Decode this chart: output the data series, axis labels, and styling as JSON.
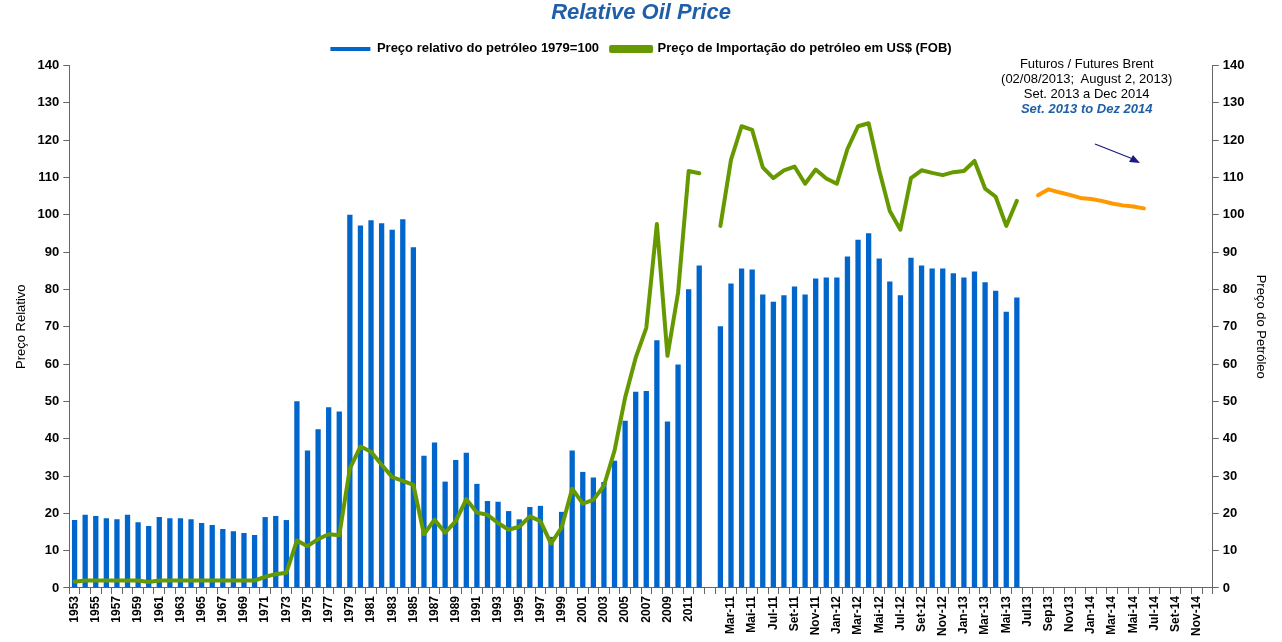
{
  "chart_data": {
    "type": "bar",
    "title": "Relative Oil Price",
    "categories": [
      "1953",
      null,
      "1955",
      null,
      "1957",
      null,
      "1959",
      null,
      "1961",
      null,
      "1963",
      null,
      "1965",
      null,
      "1967",
      null,
      "1969",
      null,
      "1971",
      null,
      "1973",
      null,
      "1975",
      null,
      "1977",
      null,
      "1979",
      null,
      "1981",
      null,
      "1983",
      null,
      "1985",
      null,
      "1987",
      null,
      "1989",
      null,
      "1991",
      null,
      "1993",
      null,
      "1995",
      null,
      "1997",
      null,
      "1999",
      null,
      "2001",
      null,
      "2003",
      null,
      "2005",
      null,
      "2007",
      null,
      "2009",
      null,
      "2011",
      null,
      null,
      null,
      "Mar-11",
      null,
      "Mai-11",
      null,
      "Jul-11",
      null,
      "Set-11",
      null,
      "Nov-11",
      null,
      "Jan-12",
      null,
      "Mar-12",
      null,
      "Mai-12",
      null,
      "Jul-12",
      null,
      "Set-12",
      null,
      "Nov-12",
      null,
      "Jan-13",
      null,
      "Mar-13",
      null,
      "Mai-13",
      null,
      "Jul13",
      null,
      "Sep13",
      null,
      "Nov13",
      null,
      "Jan-14",
      null,
      "Mar-14",
      null,
      "Mai-14",
      null,
      "Jul-14",
      null,
      "Set-14",
      null,
      "Nov-14",
      null
    ],
    "series": [
      {
        "name": "Preço relativo do petróleo 1979=100",
        "color": "#0066cc",
        "values": [
          18.2,
          19.6,
          19.3,
          18.7,
          18.4,
          19.6,
          17.6,
          16.6,
          19.0,
          18.7,
          18.7,
          18.4,
          17.4,
          16.9,
          15.8,
          15.2,
          14.7,
          14.2,
          19.0,
          19.3,
          18.2,
          50.0,
          36.8,
          42.5,
          48.4,
          47.3,
          100,
          97.1,
          98.5,
          97.7,
          96.0,
          98.8,
          91.3,
          35.4,
          39.0,
          28.5,
          34.3,
          36.2,
          27.9,
          23.3,
          23.1,
          20.6,
          18.4,
          21.7,
          22.0,
          13.7,
          20.4,
          36.8,
          31.1,
          29.6,
          28.4,
          34.1,
          44.8,
          52.6,
          52.8,
          66.4,
          44.6,
          59.9,
          80.0,
          86.4,
          null,
          70.1,
          81.6,
          85.6,
          85.3,
          78.6,
          76.7,
          78.4,
          80.8,
          78.6,
          82.9,
          83.2,
          83.2,
          88.8,
          93.3,
          95.0,
          88.3,
          82.1,
          78.4,
          88.5,
          86.4,
          85.6,
          85.6,
          84.3,
          83.2,
          84.8,
          81.9,
          79.6,
          74.0,
          77.8,
          null,
          null,
          null,
          null,
          null,
          null,
          null,
          null,
          null,
          null,
          null,
          null,
          null,
          null,
          null,
          null,
          null,
          null
        ]
      },
      {
        "name": "Preço de Importação do petróleo em US$ (FOB)",
        "type": "line",
        "axis": "y2",
        "color": "#669900",
        "values": [
          1.7,
          2.0,
          2.0,
          2.0,
          2.0,
          2.0,
          2.0,
          1.6,
          2.0,
          2.0,
          2.0,
          2.0,
          2.0,
          2.0,
          2.0,
          2.0,
          2.0,
          2.0,
          3.0,
          3.7,
          4.1,
          12.7,
          11.2,
          13.1,
          14.4,
          14.1,
          32.0,
          37.9,
          36.5,
          33.0,
          29.7,
          28.7,
          27.6,
          14.4,
          18.3,
          14.8,
          17.9,
          23.8,
          20.2,
          19.6,
          17.4,
          15.6,
          16.4,
          19.2,
          17.9,
          11.9,
          16.2,
          26.6,
          22.6,
          23.6,
          27.4,
          36.8,
          51.0,
          61.7,
          69.7,
          97.5,
          62.2,
          79.1,
          111.7,
          111.1,
          null,
          97.0,
          114.7,
          123.7,
          122.7,
          112.7,
          109.8,
          111.9,
          112.9,
          108.3,
          112.1,
          109.7,
          108.3,
          117.6,
          123.7,
          124.5,
          111.9,
          101.0,
          96.0,
          109.8,
          111.9,
          111.2,
          110.6,
          111.4,
          111.7,
          114.4,
          107.0,
          104.8,
          97.0,
          103.7,
          null,
          null,
          null,
          null,
          null,
          null,
          null,
          null,
          null,
          null,
          null,
          null,
          null,
          null,
          null,
          null,
          null,
          null
        ]
      },
      {
        "type": "line",
        "axis": "y2",
        "color": "#ff9900",
        "values": [
          null,
          null,
          null,
          null,
          null,
          null,
          null,
          null,
          null,
          null,
          null,
          null,
          null,
          null,
          null,
          null,
          null,
          null,
          null,
          null,
          null,
          null,
          null,
          null,
          null,
          null,
          null,
          null,
          null,
          null,
          null,
          null,
          null,
          null,
          null,
          null,
          null,
          null,
          null,
          null,
          null,
          null,
          null,
          null,
          null,
          null,
          null,
          null,
          null,
          null,
          null,
          null,
          null,
          null,
          null,
          null,
          null,
          null,
          null,
          null,
          null,
          null,
          null,
          null,
          null,
          null,
          null,
          null,
          null,
          null,
          null,
          null,
          null,
          null,
          null,
          null,
          null,
          null,
          null,
          null,
          null,
          null,
          null,
          null,
          null,
          null,
          null,
          null,
          null,
          null,
          null,
          105.2,
          106.8,
          106.0,
          105.3,
          104.5,
          104.2,
          103.7,
          103.0,
          102.5,
          102.2,
          101.7,
          null,
          null,
          null,
          null,
          null,
          null
        ]
      }
    ],
    "ylabel": "Preço Relativo",
    "y2label": "Preço do Petróleo",
    "ylim": [
      0,
      140
    ],
    "yticks": [
      0,
      10,
      20,
      30,
      40,
      50,
      60,
      70,
      80,
      90,
      100,
      110,
      120,
      130,
      140
    ],
    "y2lim": [
      0,
      140
    ],
    "y2ticks": [
      0,
      10,
      20,
      30,
      40,
      50,
      60,
      70,
      80,
      90,
      100,
      110,
      120,
      130,
      140
    ],
    "annotations": [
      "Futuros / Futures Brent",
      "(02/08/2013;  August 2, 2013)",
      "Set. 2013 a Dec 2014",
      "Set. 2013 to Dez 2014"
    ],
    "grid": false,
    "legend": "top",
    "marker": "none",
    "line_style": "solid"
  }
}
